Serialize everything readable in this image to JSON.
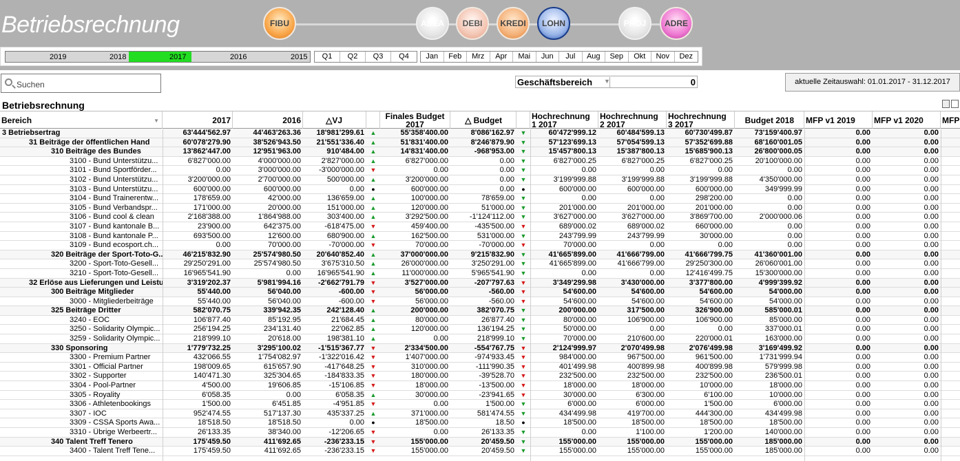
{
  "app": {
    "title": "Betriebsrechnung"
  },
  "modules": [
    {
      "id": "fibu",
      "label": "FIBU",
      "active": true
    },
    {
      "id": "abea",
      "label": "ABEA",
      "active": false
    },
    {
      "id": "debi",
      "label": "DEBI",
      "active": true
    },
    {
      "id": "kredi",
      "label": "KREDI",
      "active": true
    },
    {
      "id": "lohn",
      "label": "LOHN",
      "active": true
    },
    {
      "id": "proj",
      "label": "PROJ",
      "active": false
    },
    {
      "id": "adre",
      "label": "ADRE",
      "active": true
    }
  ],
  "time": {
    "years": [
      "2019",
      "2018",
      "2017",
      "2016",
      "2015"
    ],
    "selected_year": "2017",
    "quarters": [
      "Q1",
      "Q2",
      "Q3",
      "Q4"
    ],
    "months": [
      "Jan",
      "Feb",
      "Mrz",
      "Apr",
      "Mai",
      "Jun",
      "Jul",
      "Aug",
      "Sep",
      "Okt",
      "Nov",
      "Dez"
    ]
  },
  "search": {
    "placeholder": "Suchen"
  },
  "filter": {
    "label": "Geschäftsbereich",
    "value": "0"
  },
  "zeitauswahl": "aktuelle Zeitauswahl: 01.01.2017 - 31.12.2017",
  "table": {
    "title": "Betriebsrechnung",
    "headers": {
      "bereich": "Bereich",
      "y2017": "2017",
      "y2016": "2016",
      "dvj": "△VJ",
      "fin_budget": "Finales Budget 2017",
      "dbudget": "△ Budget",
      "hr1": "Hochrechnung 1 2017",
      "hr2": "Hochrechnung 2 2017",
      "hr3": "Hochrechnung 3 2017",
      "b2018": "Budget 2018",
      "mfp2019": "MFP v1 2019",
      "mfp2020": "MFP v1 2020",
      "mfp": "MFP"
    },
    "rows": [
      {
        "level": 0,
        "bold": true,
        "label": "3 Betriebsertrag",
        "v2017": "63'444'562.97",
        "v2016": "44'463'263.36",
        "dvj": "18'981'299.61",
        "t1": "up",
        "fb": "55'358'400.00",
        "db": "8'086'162.97",
        "t2": "gdn",
        "h1": "60'472'999.12",
        "h2": "60'484'599.13",
        "h3": "60'730'499.87",
        "b18": "73'159'400.97",
        "m19": "0.00",
        "m20": "0.00"
      },
      {
        "level": 1,
        "bold": true,
        "label": "31 Beiträge der öffentlichen Hand",
        "v2017": "60'078'279.90",
        "v2016": "38'526'943.50",
        "dvj": "21'551'336.40",
        "t1": "up",
        "fb": "51'831'400.00",
        "db": "8'246'879.90",
        "t2": "gdn",
        "h1": "57'123'699.13",
        "h2": "57'054'599.13",
        "h3": "57'352'699.88",
        "b18": "68'160'001.05",
        "m19": "0.00",
        "m20": "0.00"
      },
      {
        "level": 2,
        "bold": true,
        "label": "310 Beiträge des Bundes",
        "v2017": "13'862'447.00",
        "v2016": "12'951'963.00",
        "dvj": "910'484.00",
        "t1": "up",
        "fb": "14'831'400.00",
        "db": "-968'953.00",
        "t2": "gdn",
        "h1": "15'457'800.13",
        "h2": "15'387'800.13",
        "h3": "15'685'900.13",
        "b18": "26'800'000.05",
        "m19": "0.00",
        "m20": "0.00"
      },
      {
        "level": 3,
        "bold": false,
        "label": "3100 - Bund Unterstützu...",
        "v2017": "6'827'000.00",
        "v2016": "4'000'000.00",
        "dvj": "2'827'000.00",
        "t1": "up",
        "fb": "6'827'000.00",
        "db": "0.00",
        "t2": "gdn",
        "h1": "6'827'000.25",
        "h2": "6'827'000.25",
        "h3": "6'827'000.25",
        "b18": "20'100'000.00",
        "m19": "0.00",
        "m20": "0.00"
      },
      {
        "level": 3,
        "bold": false,
        "label": "3101 - Bund Sportförder...",
        "v2017": "0.00",
        "v2016": "3'000'000.00",
        "dvj": "-3'000'000.00",
        "t1": "dn",
        "fb": "0.00",
        "db": "0.00",
        "t2": "gdn",
        "h1": "0.00",
        "h2": "0.00",
        "h3": "0.00",
        "b18": "0.00",
        "m19": "0.00",
        "m20": "0.00"
      },
      {
        "level": 3,
        "bold": false,
        "label": "3102 - Bund Unterstützu...",
        "v2017": "3'200'000.00",
        "v2016": "2'700'000.00",
        "dvj": "500'000.00",
        "t1": "up",
        "fb": "3'200'000.00",
        "db": "0.00",
        "t2": "gdn",
        "h1": "3'199'999.88",
        "h2": "3'199'999.88",
        "h3": "3'199'999.88",
        "b18": "4'350'000.00",
        "m19": "0.00",
        "m20": "0.00"
      },
      {
        "level": 3,
        "bold": false,
        "label": "3103 - Bund Unterstützu...",
        "v2017": "600'000.00",
        "v2016": "600'000.00",
        "dvj": "0.00",
        "t1": "bk",
        "fb": "600'000.00",
        "db": "0.00",
        "t2": "bk",
        "h1": "600'000.00",
        "h2": "600'000.00",
        "h3": "600'000.00",
        "b18": "349'999.99",
        "m19": "0.00",
        "m20": "0.00"
      },
      {
        "level": 3,
        "bold": false,
        "label": "3104 - Bund Trainerentw...",
        "v2017": "178'659.00",
        "v2016": "42'000.00",
        "dvj": "136'659.00",
        "t1": "up",
        "fb": "100'000.00",
        "db": "78'659.00",
        "t2": "gdn",
        "h1": "0.00",
        "h2": "0.00",
        "h3": "298'200.00",
        "b18": "0.00",
        "m19": "0.00",
        "m20": "0.00"
      },
      {
        "level": 3,
        "bold": false,
        "label": "3105 - Bund Verbandspr...",
        "v2017": "171'000.00",
        "v2016": "20'000.00",
        "dvj": "151'000.00",
        "t1": "up",
        "fb": "120'000.00",
        "db": "51'000.00",
        "t2": "gdn",
        "h1": "201'000.00",
        "h2": "201'000.00",
        "h3": "201'000.00",
        "b18": "0.00",
        "m19": "0.00",
        "m20": "0.00"
      },
      {
        "level": 3,
        "bold": false,
        "label": "3106 - Bund cool & clean",
        "v2017": "2'168'388.00",
        "v2016": "1'864'988.00",
        "dvj": "303'400.00",
        "t1": "up",
        "fb": "3'292'500.00",
        "db": "-1'124'112.00",
        "t2": "gdn",
        "h1": "3'627'000.00",
        "h2": "3'627'000.00",
        "h3": "3'869'700.00",
        "b18": "2'000'000.06",
        "m19": "0.00",
        "m20": "0.00"
      },
      {
        "level": 3,
        "bold": false,
        "label": "3107 - Bund kantonale B...",
        "v2017": "23'900.00",
        "v2016": "642'375.00",
        "dvj": "-618'475.00",
        "t1": "dn",
        "fb": "459'400.00",
        "db": "-435'500.00",
        "t2": "dn",
        "h1": "689'000.02",
        "h2": "689'000.02",
        "h3": "660'000.00",
        "b18": "0.00",
        "m19": "0.00",
        "m20": "0.00"
      },
      {
        "level": 3,
        "bold": false,
        "label": "3108 - Bund kantonale P...",
        "v2017": "693'500.00",
        "v2016": "12'600.00",
        "dvj": "680'900.00",
        "t1": "up",
        "fb": "162'500.00",
        "db": "531'000.00",
        "t2": "gdn",
        "h1": "243'799.99",
        "h2": "243'799.99",
        "h3": "30'000.00",
        "b18": "0.00",
        "m19": "0.00",
        "m20": "0.00"
      },
      {
        "level": 3,
        "bold": false,
        "label": "3109 - Bund ecosport.ch...",
        "v2017": "0.00",
        "v2016": "70'000.00",
        "dvj": "-70'000.00",
        "t1": "dn",
        "fb": "70'000.00",
        "db": "-70'000.00",
        "t2": "dn",
        "h1": "70'000.00",
        "h2": "0.00",
        "h3": "0.00",
        "b18": "0.00",
        "m19": "0.00",
        "m20": "0.00"
      },
      {
        "level": 2,
        "bold": true,
        "label": "320 Beiträge der Sport-Toto-G...",
        "v2017": "46'215'832.90",
        "v2016": "25'574'980.50",
        "dvj": "20'640'852.40",
        "t1": "up",
        "fb": "37'000'000.00",
        "db": "9'215'832.90",
        "t2": "gdn",
        "h1": "41'665'899.00",
        "h2": "41'666'799.00",
        "h3": "41'666'799.75",
        "b18": "41'360'001.00",
        "m19": "0.00",
        "m20": "0.00"
      },
      {
        "level": 3,
        "bold": false,
        "label": "3200 - Sport-Toto-Gesell...",
        "v2017": "29'250'291.00",
        "v2016": "25'574'980.50",
        "dvj": "3'675'310.50",
        "t1": "up",
        "fb": "26'000'000.00",
        "db": "3'250'291.00",
        "t2": "gdn",
        "h1": "41'665'899.00",
        "h2": "41'666'799.00",
        "h3": "29'250'300.00",
        "b18": "26'060'001.00",
        "m19": "0.00",
        "m20": "0.00"
      },
      {
        "level": 3,
        "bold": false,
        "label": "3210 - Sport-Toto-Gesell...",
        "v2017": "16'965'541.90",
        "v2016": "0.00",
        "dvj": "16'965'541.90",
        "t1": "up",
        "fb": "11'000'000.00",
        "db": "5'965'541.90",
        "t2": "gdn",
        "h1": "0.00",
        "h2": "0.00",
        "h3": "12'416'499.75",
        "b18": "15'300'000.00",
        "m19": "0.00",
        "m20": "0.00"
      },
      {
        "level": 1,
        "bold": true,
        "label": "32 Erlöse aus Lieferungen und Leistu...",
        "v2017": "3'319'202.37",
        "v2016": "5'981'994.16",
        "dvj": "-2'662'791.79",
        "t1": "dn",
        "fb": "3'527'000.00",
        "db": "-207'797.63",
        "t2": "dn",
        "h1": "3'349'299.98",
        "h2": "3'430'000.00",
        "h3": "3'377'800.00",
        "b18": "4'999'399.92",
        "m19": "0.00",
        "m20": "0.00"
      },
      {
        "level": 2,
        "bold": true,
        "label": "300 Beiträge Mitglieder",
        "v2017": "55'440.00",
        "v2016": "56'040.00",
        "dvj": "-600.00",
        "t1": "dn",
        "fb": "56'000.00",
        "db": "-560.00",
        "t2": "dn",
        "h1": "54'600.00",
        "h2": "54'600.00",
        "h3": "54'600.00",
        "b18": "54'000.00",
        "m19": "0.00",
        "m20": "0.00"
      },
      {
        "level": 3,
        "bold": false,
        "label": "3000 - Mitgliederbeiträge",
        "v2017": "55'440.00",
        "v2016": "56'040.00",
        "dvj": "-600.00",
        "t1": "dn",
        "fb": "56'000.00",
        "db": "-560.00",
        "t2": "dn",
        "h1": "54'600.00",
        "h2": "54'600.00",
        "h3": "54'600.00",
        "b18": "54'000.00",
        "m19": "0.00",
        "m20": "0.00"
      },
      {
        "level": 2,
        "bold": true,
        "label": "325 Beiträge Dritter",
        "v2017": "582'070.75",
        "v2016": "339'942.35",
        "dvj": "242'128.40",
        "t1": "up",
        "fb": "200'000.00",
        "db": "382'070.75",
        "t2": "gdn",
        "h1": "200'000.00",
        "h2": "317'500.00",
        "h3": "326'900.00",
        "b18": "585'000.01",
        "m19": "0.00",
        "m20": "0.00"
      },
      {
        "level": 3,
        "bold": false,
        "label": "3240 - EOC",
        "v2017": "106'877.40",
        "v2016": "85'192.95",
        "dvj": "21'684.45",
        "t1": "up",
        "fb": "80'000.00",
        "db": "26'877.40",
        "t2": "gdn",
        "h1": "80'000.00",
        "h2": "106'900.00",
        "h3": "106'900.00",
        "b18": "85'000.00",
        "m19": "0.00",
        "m20": "0.00"
      },
      {
        "level": 3,
        "bold": false,
        "label": "3250 - Solidarity Olympic...",
        "v2017": "256'194.25",
        "v2016": "234'131.40",
        "dvj": "22'062.85",
        "t1": "up",
        "fb": "120'000.00",
        "db": "136'194.25",
        "t2": "gdn",
        "h1": "50'000.00",
        "h2": "0.00",
        "h3": "0.00",
        "b18": "337'000.01",
        "m19": "0.00",
        "m20": "0.00"
      },
      {
        "level": 3,
        "bold": false,
        "label": "3259 - Solidarity Olympic...",
        "v2017": "218'999.10",
        "v2016": "20'618.00",
        "dvj": "198'381.10",
        "t1": "up",
        "fb": "0.00",
        "db": "218'999.10",
        "t2": "gdn",
        "h1": "70'000.00",
        "h2": "210'600.00",
        "h3": "220'000.01",
        "b18": "163'000.00",
        "m19": "0.00",
        "m20": "0.00"
      },
      {
        "level": 2,
        "bold": true,
        "label": "330 Sponsoring",
        "v2017": "1'779'732.25",
        "v2016": "3'295'100.02",
        "dvj": "-1'515'367.77",
        "t1": "dn",
        "fb": "2'334'500.00",
        "db": "-554'767.75",
        "t2": "dn",
        "h1": "2'124'999.97",
        "h2": "2'070'499.98",
        "h3": "2'076'499.98",
        "b18": "3'169'499.92",
        "m19": "0.00",
        "m20": "0.00"
      },
      {
        "level": 3,
        "bold": false,
        "label": "3300 - Premium Partner",
        "v2017": "432'066.55",
        "v2016": "1'754'082.97",
        "dvj": "-1'322'016.42",
        "t1": "dn",
        "fb": "1'407'000.00",
        "db": "-974'933.45",
        "t2": "dn",
        "h1": "984'000.00",
        "h2": "967'500.00",
        "h3": "961'500.00",
        "b18": "1'731'999.94",
        "m19": "0.00",
        "m20": "0.00"
      },
      {
        "level": 3,
        "bold": false,
        "label": "3301 - Official Partner",
        "v2017": "198'009.65",
        "v2016": "615'657.90",
        "dvj": "-417'648.25",
        "t1": "dn",
        "fb": "310'000.00",
        "db": "-111'990.35",
        "t2": "dn",
        "h1": "401'499.98",
        "h2": "400'899.98",
        "h3": "400'899.98",
        "b18": "579'999.98",
        "m19": "0.00",
        "m20": "0.00"
      },
      {
        "level": 3,
        "bold": false,
        "label": "3302 - Supporter",
        "v2017": "140'471.30",
        "v2016": "325'304.65",
        "dvj": "-184'833.35",
        "t1": "dn",
        "fb": "180'000.00",
        "db": "-39'528.70",
        "t2": "dn",
        "h1": "232'500.00",
        "h2": "232'500.00",
        "h3": "232'500.00",
        "b18": "236'500.01",
        "m19": "0.00",
        "m20": "0.00"
      },
      {
        "level": 3,
        "bold": false,
        "label": "3304 - Pool-Partner",
        "v2017": "4'500.00",
        "v2016": "19'606.85",
        "dvj": "-15'106.85",
        "t1": "dn",
        "fb": "18'000.00",
        "db": "-13'500.00",
        "t2": "dn",
        "h1": "18'000.00",
        "h2": "18'000.00",
        "h3": "10'000.00",
        "b18": "18'000.00",
        "m19": "0.00",
        "m20": "0.00"
      },
      {
        "level": 3,
        "bold": false,
        "label": "3305 - Royality",
        "v2017": "6'058.35",
        "v2016": "0.00",
        "dvj": "6'058.35",
        "t1": "up",
        "fb": "30'000.00",
        "db": "-23'941.65",
        "t2": "dn",
        "h1": "30'000.00",
        "h2": "6'300.00",
        "h3": "6'100.00",
        "b18": "10'000.00",
        "m19": "0.00",
        "m20": "0.00"
      },
      {
        "level": 3,
        "bold": false,
        "label": "3306 - Athletenbookings",
        "v2017": "1'500.00",
        "v2016": "6'451.85",
        "dvj": "-4'951.85",
        "t1": "dn",
        "fb": "0.00",
        "db": "1'500.00",
        "t2": "gdn",
        "h1": "6'000.00",
        "h2": "6'000.00",
        "h3": "1'500.00",
        "b18": "6'000.00",
        "m19": "0.00",
        "m20": "0.00"
      },
      {
        "level": 3,
        "bold": false,
        "label": "3307 - IOC",
        "v2017": "952'474.55",
        "v2016": "517'137.30",
        "dvj": "435'337.25",
        "t1": "up",
        "fb": "371'000.00",
        "db": "581'474.55",
        "t2": "gdn",
        "h1": "434'499.98",
        "h2": "419'700.00",
        "h3": "444'300.00",
        "b18": "434'499.98",
        "m19": "0.00",
        "m20": "0.00"
      },
      {
        "level": 3,
        "bold": false,
        "label": "3309 - CSSA Sports Awa...",
        "v2017": "18'518.50",
        "v2016": "18'518.50",
        "dvj": "0.00",
        "t1": "bk",
        "fb": "18'500.00",
        "db": "18.50",
        "t2": "bk",
        "h1": "18'500.00",
        "h2": "18'500.00",
        "h3": "18'500.00",
        "b18": "18'500.00",
        "m19": "0.00",
        "m20": "0.00"
      },
      {
        "level": 3,
        "bold": false,
        "label": "3310 - Übrige Werbeertr...",
        "v2017": "26'133.35",
        "v2016": "38'340.00",
        "dvj": "-12'206.65",
        "t1": "dn",
        "fb": "0.00",
        "db": "26'133.35",
        "t2": "gdn",
        "h1": "0.00",
        "h2": "1'100.00",
        "h3": "1'200.00",
        "b18": "140'000.00",
        "m19": "0.00",
        "m20": "0.00"
      },
      {
        "level": 2,
        "bold": true,
        "label": "340 Talent Treff Tenero",
        "v2017": "175'459.50",
        "v2016": "411'692.65",
        "dvj": "-236'233.15",
        "t1": "dn",
        "fb": "155'000.00",
        "db": "20'459.50",
        "t2": "gdn",
        "h1": "155'000.00",
        "h2": "155'000.00",
        "h3": "155'000.00",
        "b18": "185'000.00",
        "m19": "0.00",
        "m20": "0.00"
      },
      {
        "level": 3,
        "bold": false,
        "label": "3400 - Talent Treff Tene...",
        "v2017": "175'459.50",
        "v2016": "411'692.65",
        "dvj": "-236'233.15",
        "t1": "dn",
        "fb": "155'000.00",
        "db": "20'459.50",
        "t2": "gdn",
        "h1": "155'000.00",
        "h2": "155'000.00",
        "h3": "155'000.00",
        "b18": "185'000.00",
        "m19": "0.00",
        "m20": "0.00"
      }
    ]
  }
}
